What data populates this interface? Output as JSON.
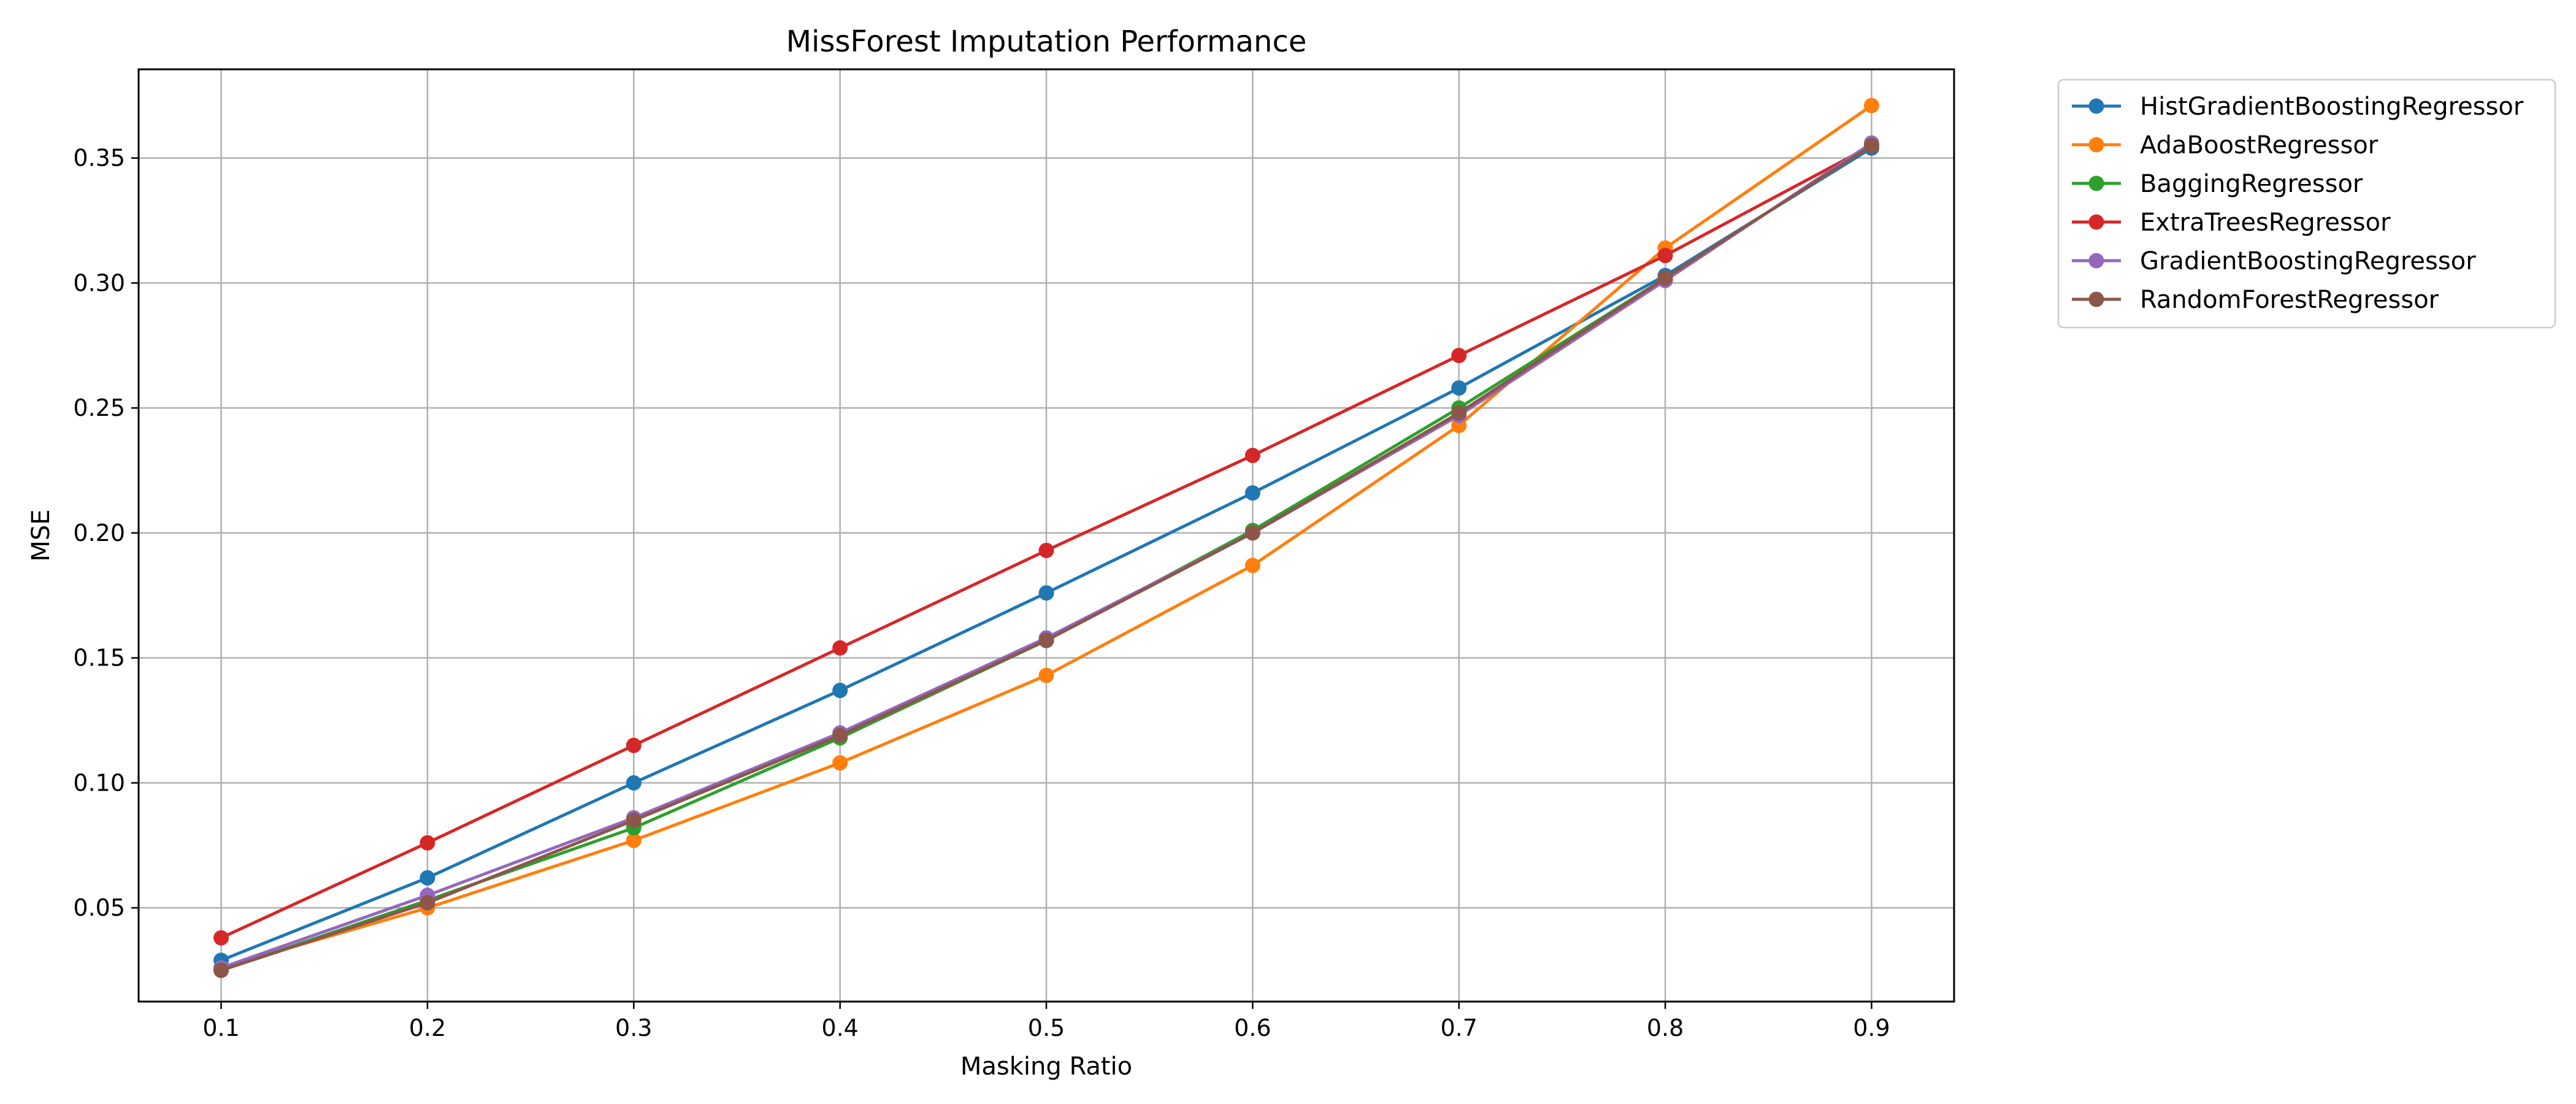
{
  "chart_data": {
    "type": "line",
    "title": "MissForest Imputation Performance",
    "xlabel": "Masking Ratio",
    "ylabel": "MSE",
    "x": [
      0.1,
      0.2,
      0.3,
      0.4,
      0.5,
      0.6,
      0.7,
      0.8,
      0.9
    ],
    "xlim": [
      0.06,
      0.94
    ],
    "ylim": [
      0.0125,
      0.3855
    ],
    "xticks": [
      "0.1",
      "0.2",
      "0.3",
      "0.4",
      "0.5",
      "0.6",
      "0.7",
      "0.8",
      "0.9"
    ],
    "yticks": [
      "0.05",
      "0.10",
      "0.15",
      "0.20",
      "0.25",
      "0.30",
      "0.35"
    ],
    "grid": true,
    "legend_position": "outside-top-right",
    "series": [
      {
        "name": "HistGradientBoostingRegressor",
        "color": "#1f77b4",
        "values": [
          0.029,
          0.062,
          0.1,
          0.137,
          0.176,
          0.216,
          0.258,
          0.303,
          0.354
        ]
      },
      {
        "name": "AdaBoostRegressor",
        "color": "#ff7f0e",
        "values": [
          0.026,
          0.05,
          0.077,
          0.108,
          0.143,
          0.187,
          0.243,
          0.314,
          0.371
        ]
      },
      {
        "name": "BaggingRegressor",
        "color": "#2ca02c",
        "values": [
          0.025,
          0.053,
          0.082,
          0.118,
          0.157,
          0.201,
          0.25,
          0.302,
          0.355
        ]
      },
      {
        "name": "ExtraTreesRegressor",
        "color": "#d62728",
        "values": [
          0.038,
          0.076,
          0.115,
          0.154,
          0.193,
          0.231,
          0.271,
          0.311,
          0.355
        ]
      },
      {
        "name": "GradientBoostingRegressor",
        "color": "#9467bd",
        "values": [
          0.026,
          0.055,
          0.086,
          0.12,
          0.158,
          0.2,
          0.247,
          0.301,
          0.356
        ]
      },
      {
        "name": "RandomForestRegressor",
        "color": "#8c564b",
        "values": [
          0.025,
          0.052,
          0.085,
          0.119,
          0.157,
          0.2,
          0.248,
          0.302,
          0.355
        ]
      }
    ]
  }
}
